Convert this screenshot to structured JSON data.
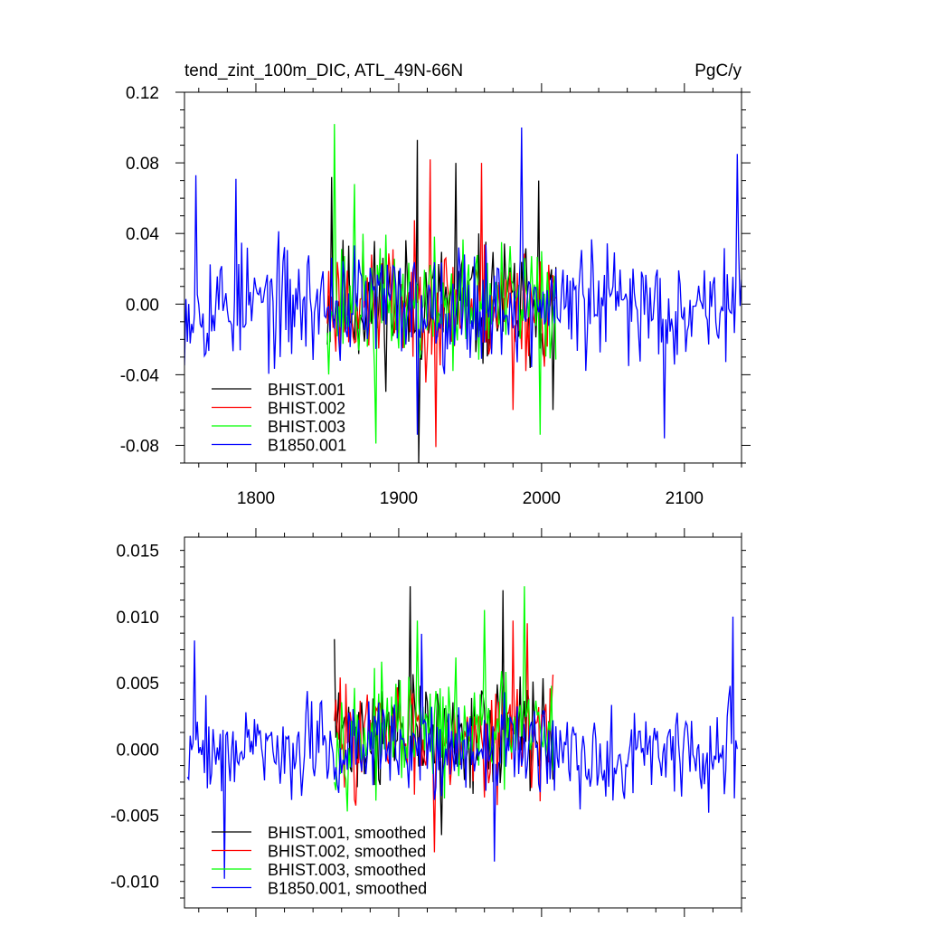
{
  "figure": {
    "title_left": "tend_zint_100m_DIC, ATL_49N-66N",
    "title_right": "PgC/y"
  },
  "chart_data": [
    {
      "type": "line",
      "title": "tend_zint_100m_DIC, ATL_49N-66N",
      "units": "PgC/y",
      "xlim": [
        1750,
        2140
      ],
      "ylim": [
        -0.09,
        0.12
      ],
      "x_ticks": [
        1800,
        1900,
        2000,
        2100
      ],
      "x_tick_labels": [
        "1800",
        "1900",
        "2000",
        "2100"
      ],
      "y_ticks": [
        -0.08,
        -0.04,
        0.0,
        0.04,
        0.08,
        0.12
      ],
      "y_tick_labels": [
        "-0.08",
        "-0.04",
        "0.00",
        "0.04",
        "0.08",
        "0.12"
      ],
      "legend_position": "bottom-left",
      "grid": false,
      "series": [
        {
          "name": "BHIST.001",
          "color": "#000000",
          "x_start": 1850,
          "x_end": 2010,
          "amplitude": 0.034,
          "seed": 11,
          "peaks": [
            [
              1913,
              0.093
            ],
            [
              1914,
              -0.09
            ],
            [
              1940,
              0.08
            ],
            [
              1998,
              0.07
            ],
            [
              2008,
              -0.06
            ],
            [
              1853,
              0.072
            ]
          ]
        },
        {
          "name": "BHIST.002",
          "color": "#ff0000",
          "x_start": 1850,
          "x_end": 2010,
          "amplitude": 0.032,
          "seed": 23,
          "peaks": [
            [
              1926,
              -0.081
            ],
            [
              1958,
              0.08
            ],
            [
              1922,
              0.082
            ],
            [
              1980,
              -0.06
            ]
          ]
        },
        {
          "name": "BHIST.003",
          "color": "#00ff00",
          "x_start": 1850,
          "x_end": 2010,
          "amplitude": 0.033,
          "seed": 37,
          "peaks": [
            [
              1855,
              0.102
            ],
            [
              1884,
              -0.079
            ],
            [
              1999,
              -0.074
            ],
            [
              1869,
              0.068
            ]
          ]
        },
        {
          "name": "B1850.001",
          "color": "#0000ff",
          "x_start": 1750,
          "x_end": 2140,
          "amplitude": 0.031,
          "seed": 53,
          "peaks": [
            [
              1758,
              0.073
            ],
            [
              1986,
              0.1
            ],
            [
              2137,
              0.085
            ],
            [
              2086,
              -0.076
            ],
            [
              1913,
              -0.074
            ],
            [
              1786,
              0.071
            ]
          ]
        }
      ]
    },
    {
      "type": "line",
      "xlim": [
        1750,
        2140
      ],
      "ylim": [
        -0.012,
        0.016
      ],
      "x_ticks": [
        1800,
        1900,
        2000,
        2100
      ],
      "x_tick_labels": [],
      "y_ticks": [
        -0.01,
        -0.005,
        0.0,
        0.005,
        0.01,
        0.015
      ],
      "y_tick_labels": [
        "-0.010",
        "-0.005",
        "0.000",
        "0.005",
        "0.010",
        "0.015"
      ],
      "legend_position": "bottom-left",
      "grid": false,
      "series": [
        {
          "name": "BHIST.001, smoothed",
          "color": "#000000",
          "x_start": 1855,
          "x_end": 2008,
          "amplitude": 0.0038,
          "offset": 0.0012,
          "seed": 71,
          "peaks": [
            [
              1908,
              0.0123
            ],
            [
              1973,
              0.012
            ],
            [
              1855,
              0.0083
            ],
            [
              1930,
              -0.0065
            ]
          ]
        },
        {
          "name": "BHIST.002, smoothed",
          "color": "#ff0000",
          "x_start": 1855,
          "x_end": 2008,
          "amplitude": 0.0038,
          "offset": 0.0012,
          "seed": 83,
          "peaks": [
            [
              1925,
              -0.0078
            ],
            [
              1980,
              0.0097
            ],
            [
              1990,
              0.0095
            ]
          ]
        },
        {
          "name": "BHIST.003, smoothed",
          "color": "#00ff00",
          "x_start": 1855,
          "x_end": 2008,
          "amplitude": 0.0038,
          "offset": 0.0012,
          "seed": 97,
          "peaks": [
            [
              1988,
              0.0123
            ],
            [
              1913,
              0.0097
            ],
            [
              1960,
              0.0105
            ]
          ]
        },
        {
          "name": "B1850.001, smoothed",
          "color": "#0000ff",
          "x_start": 1752,
          "x_end": 2137,
          "amplitude": 0.0033,
          "offset": 0.0,
          "seed": 109,
          "peaks": [
            [
              1757,
              0.0082
            ],
            [
              1778,
              -0.0098
            ],
            [
              1967,
              -0.0085
            ],
            [
              2134,
              0.01
            ],
            [
              1916,
              0.0087
            ]
          ]
        }
      ]
    }
  ]
}
